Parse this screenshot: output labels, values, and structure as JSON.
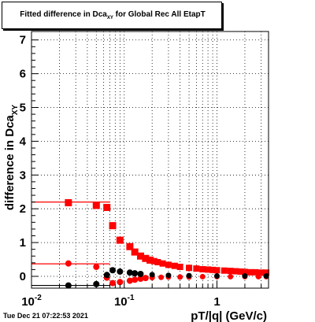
{
  "title": {
    "pre": "Fitted difference in Dca",
    "sub": "XY",
    "post": " for Global Rec All EtapT"
  },
  "footer": "Tue Dec 21 07:22:53 2021",
  "chart_data": {
    "type": "scatter",
    "title": "Fitted difference in Dca_XY for Global Rec All EtapT",
    "xlabel": "pT/|q| (GeV/c)",
    "ylabel": "difference in Dca_XY",
    "xscale": "log",
    "xlim": [
      0.01,
      3.6
    ],
    "ylim": [
      -0.35,
      7.25
    ],
    "grid": true,
    "x_tick_labels": [
      "10^-2",
      "10^-1",
      "1"
    ],
    "y_tick_labels": [
      "0",
      "1",
      "2",
      "3",
      "4",
      "5",
      "6",
      "7"
    ],
    "series": [
      {
        "color": "#ff0000",
        "marker": "square",
        "x": [
          0.025,
          0.05,
          0.065,
          0.075,
          0.09,
          0.115,
          0.13,
          0.15,
          0.17,
          0.19,
          0.21,
          0.23,
          0.26,
          0.3,
          0.35,
          0.4,
          0.5,
          0.6,
          0.7,
          0.8,
          0.9,
          1.0,
          1.2,
          1.4,
          1.6,
          1.8,
          2.0,
          2.3,
          2.6,
          3.0,
          3.4
        ],
        "y": [
          2.18,
          2.1,
          2.04,
          1.5,
          1.07,
          0.88,
          0.72,
          0.6,
          0.53,
          0.48,
          0.45,
          0.42,
          0.38,
          0.34,
          0.31,
          0.28,
          0.25,
          0.23,
          0.21,
          0.2,
          0.19,
          0.18,
          0.17,
          0.16,
          0.15,
          0.14,
          0.13,
          0.12,
          0.12,
          0.11,
          0.11
        ],
        "fit_level": 2.2,
        "fit_xmax": 0.07
      },
      {
        "color": "#ff0000",
        "marker": "circle",
        "x": [
          0.025,
          0.05,
          0.065,
          0.075,
          0.09,
          0.115,
          0.13,
          0.15,
          0.17,
          0.2,
          0.25,
          0.3,
          0.4,
          0.5,
          0.7,
          1.0,
          1.4,
          2.0,
          2.8,
          3.4
        ],
        "y": [
          0.38,
          0.28,
          -0.04,
          -0.2,
          -0.17,
          -0.13,
          -0.1,
          -0.07,
          -0.05,
          -0.04,
          -0.03,
          -0.02,
          -0.02,
          -0.02,
          -0.01,
          -0.01,
          -0.01,
          -0.01,
          -0.01,
          -0.01
        ],
        "fit_level": 0.37,
        "fit_xmax": 0.07
      },
      {
        "color": "#000000",
        "marker": "circle",
        "x": [
          0.025,
          0.05,
          0.065,
          0.075,
          0.09,
          0.115,
          0.13,
          0.15,
          0.2,
          0.3,
          0.5,
          1.0,
          2.0,
          3.4
        ],
        "y": [
          -0.27,
          -0.23,
          0.04,
          0.18,
          0.14,
          0.11,
          0.09,
          0.07,
          0.05,
          0.03,
          0.02,
          0.01,
          0.01,
          0.01
        ],
        "fit_level": -0.27,
        "fit_xmax": 0.07
      }
    ]
  }
}
